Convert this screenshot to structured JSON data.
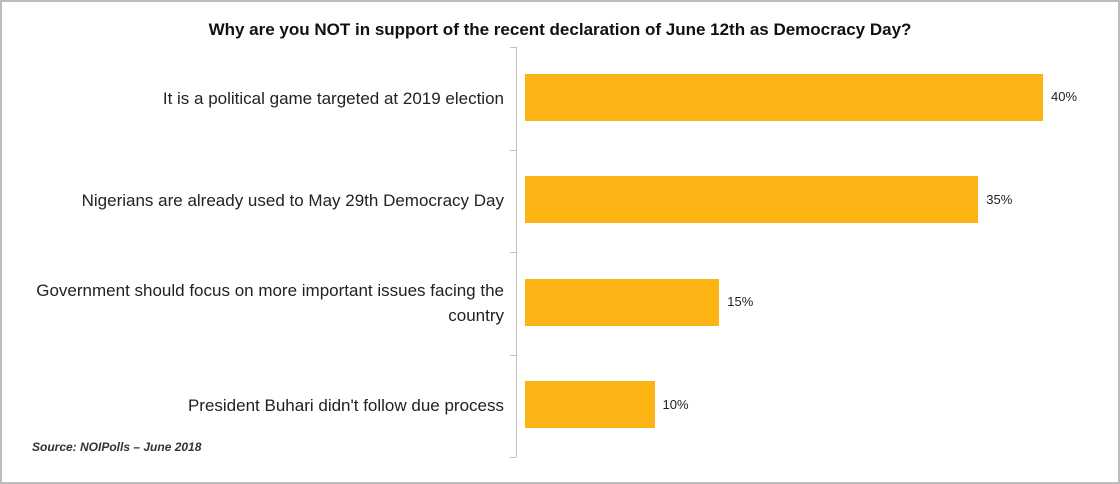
{
  "chart_data": {
    "type": "bar",
    "orientation": "horizontal",
    "title": "Why are you NOT in support of the recent declaration of June 12th as Democracy Day?",
    "categories": [
      "It is a political game targeted at 2019 election",
      "Nigerians are already used to May 29th Democracy Day",
      "Government should focus on more important issues facing the country",
      "President Buhari didn't follow due process"
    ],
    "values": [
      40,
      35,
      15,
      10
    ],
    "value_labels": [
      "40%",
      "35%",
      "15%",
      "10%"
    ],
    "color": "#fbb414",
    "source": "Source: NOIPolls – June 2018"
  }
}
